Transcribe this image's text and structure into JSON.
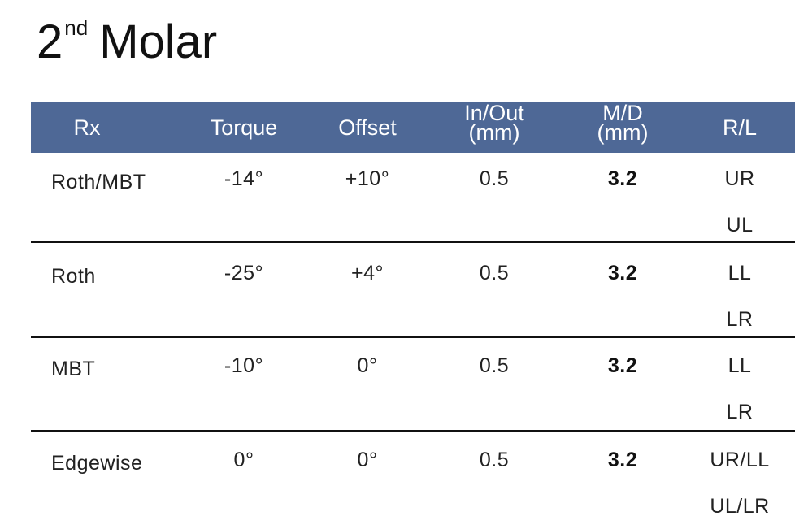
{
  "header": {
    "title": {
      "number": "2",
      "superscript": "nd",
      "text": "Molar"
    }
  },
  "table": {
    "columns": [
      [
        "Rx"
      ],
      [
        "Torque"
      ],
      [
        "Offset"
      ],
      [
        "In/Out",
        "(mm)"
      ],
      [
        "M/D",
        "(mm)"
      ],
      [
        "R/L"
      ]
    ],
    "rows": [
      [
        "Roth/MBT",
        "-14°",
        "+10°",
        "0.5",
        "3.2",
        [
          "UR",
          "UL"
        ]
      ],
      [
        "Roth",
        "-25°",
        "+4°",
        "0.5",
        "3.2",
        [
          "LL",
          "LR"
        ]
      ],
      [
        "MBT",
        "-10°",
        "0°",
        "0.5",
        "3.2",
        [
          "LL",
          "LR"
        ]
      ],
      [
        "Edgewise",
        "0°",
        "0°",
        "0.5",
        "3.2",
        [
          "UR/LL",
          "UL/LR"
        ]
      ]
    ]
  }
}
